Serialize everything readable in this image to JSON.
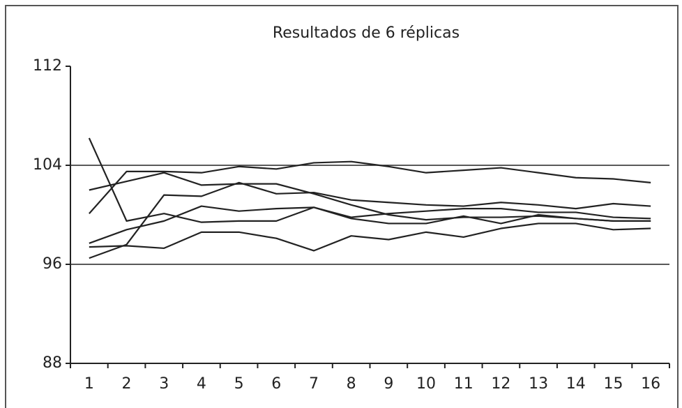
{
  "chart_data": {
    "type": "line",
    "title": "Resultados de 6 réplicas",
    "categories": [
      "1",
      "2",
      "3",
      "4",
      "5",
      "6",
      "7",
      "8",
      "9",
      "10",
      "11",
      "12",
      "13",
      "14",
      "15",
      "16"
    ],
    "series": [
      {
        "color": "#222222",
        "values": [
          106.2,
          99.5,
          100.1,
          99.4,
          99.5,
          99.5,
          100.6,
          99.7,
          99.3,
          99.3,
          99.9,
          99.3,
          100.0,
          99.7,
          99.5,
          99.5
        ]
      },
      {
        "color": "#222222",
        "values": [
          100.1,
          103.5,
          103.5,
          103.4,
          103.9,
          103.7,
          104.2,
          104.3,
          103.9,
          103.4,
          103.6,
          103.8,
          103.4,
          103.0,
          102.9,
          102.6
        ]
      },
      {
        "color": "#222222",
        "values": [
          102.0,
          102.7,
          103.4,
          102.4,
          102.5,
          102.5,
          101.7,
          100.8,
          100.0,
          99.6,
          99.8,
          99.8,
          99.9,
          99.7,
          99.5,
          99.5
        ]
      },
      {
        "color": "#222222",
        "values": [
          96.5,
          97.6,
          101.6,
          101.5,
          102.6,
          101.7,
          101.8,
          101.2,
          101.0,
          100.8,
          100.7,
          101.0,
          100.8,
          100.5,
          100.9,
          100.7
        ]
      },
      {
        "color": "#222222",
        "values": [
          97.7,
          98.8,
          99.5,
          100.7,
          100.3,
          100.5,
          100.6,
          99.8,
          100.1,
          100.3,
          100.5,
          100.5,
          100.2,
          100.2,
          99.8,
          99.7
        ]
      },
      {
        "color": "#222222",
        "values": [
          97.4,
          97.5,
          97.3,
          98.6,
          98.6,
          98.1,
          97.1,
          98.3,
          98.0,
          98.6,
          98.2,
          98.9,
          99.3,
          99.3,
          98.8,
          98.9
        ]
      }
    ],
    "ylim": [
      88,
      112
    ],
    "yticks": [
      88,
      96,
      104,
      112
    ],
    "grid": true
  }
}
